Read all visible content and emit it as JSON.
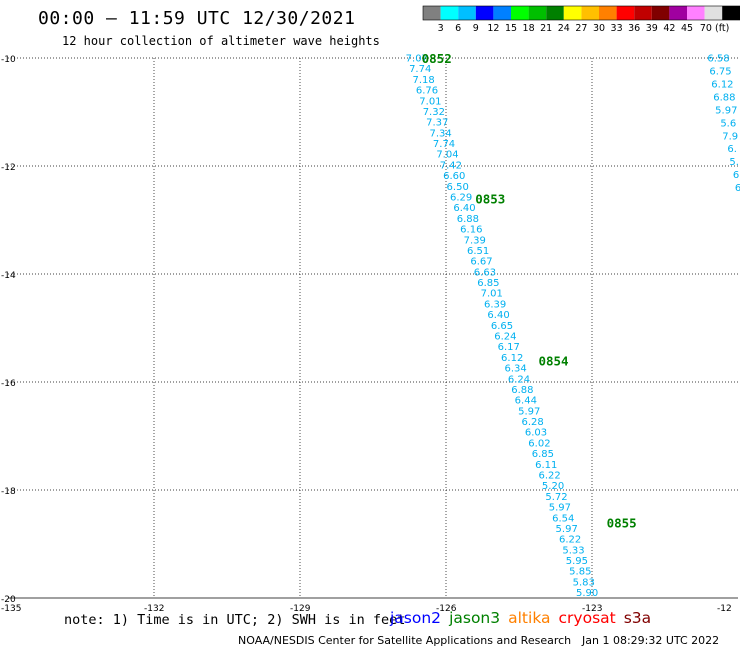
{
  "title": "00:00 – 11:59 UTC 12/30/2021",
  "subtitle": "12 hour collection of altimeter wave heights",
  "colorbar": {
    "colors": [
      "#808080",
      "#00ffff",
      "#00bfff",
      "#0000ff",
      "#0080ff",
      "#00ff00",
      "#00bf00",
      "#008000",
      "#ffff00",
      "#ffc000",
      "#ff8000",
      "#ff0000",
      "#c00000",
      "#800000",
      "#a000a0",
      "#ff80ff",
      "#e0e0e0",
      "#000000"
    ],
    "labels": [
      "3",
      "6",
      "9",
      "12",
      "15",
      "18",
      "21",
      "24",
      "27",
      "30",
      "33",
      "36",
      "39",
      "42",
      "45",
      "70 (ft)"
    ]
  },
  "axes": {
    "lat_labels": [
      "-10",
      "-12",
      "-14",
      "-16",
      "-18",
      "-20"
    ],
    "lon_labels": [
      "-135",
      "-132",
      "-129",
      "-126",
      "-123",
      "-12"
    ]
  },
  "tracks": [
    {
      "color": "#00b0f0",
      "start": [
        -126.6,
        -10.0
      ],
      "end": [
        -123.1,
        -19.9
      ],
      "values": [
        "7.07",
        "7.74",
        "7.18",
        "6.76",
        "7.01",
        "7.32",
        "7.37",
        "7.34",
        "7.74",
        "7.04",
        "7.42",
        "6.60",
        "6.50",
        "6.29",
        "6.40",
        "6.88",
        "6.16",
        "7.39",
        "6.51",
        "6.67",
        "6.63",
        "6.85",
        "7.01",
        "6.39",
        "6.40",
        "6.65",
        "6.24",
        "6.17",
        "6.12",
        "6.34",
        "6.24",
        "6.88",
        "6.44",
        "5.97",
        "6.28",
        "6.03",
        "6.02",
        "6.85",
        "6.11",
        "6.22",
        "5.20",
        "5.72",
        "5.97",
        "6.54",
        "5.97",
        "6.22",
        "5.33",
        "5.95",
        "5.85",
        "5.83",
        "5.90"
      ],
      "times": [
        {
          "label": "0852",
          "lon": -126.5,
          "lat": -10.0
        },
        {
          "label": "0853",
          "lon": -125.4,
          "lat": -12.6
        },
        {
          "label": "0854",
          "lon": -124.1,
          "lat": -15.6
        },
        {
          "label": "0855",
          "lon": -122.7,
          "lat": -18.6
        }
      ]
    },
    {
      "color": "#00b0f0",
      "start": [
        -120.4,
        -10.0
      ],
      "end": [
        -120.0,
        -12.4
      ],
      "values": [
        "6.58",
        "6.75",
        "6.12",
        "6.88",
        "5.97",
        "5.6",
        "7.9",
        "6.",
        "5.",
        "6",
        "6"
      ],
      "times": []
    }
  ],
  "footer": {
    "note": "note:  1) Time is in UTC; 2) SWH is in feet",
    "satellites": [
      {
        "name": "jason2",
        "color": "#0000ff"
      },
      {
        "name": "jason3",
        "color": "#008000"
      },
      {
        "name": "altika",
        "color": "#ff8000"
      },
      {
        "name": "cryosat",
        "color": "#ff0000"
      },
      {
        "name": "s3a",
        "color": "#800000"
      }
    ],
    "credit": "NOAA/NESDIS Center for Satellite Applications and Research",
    "timestamp": "Jan  1 08:29:32 UTC 2022"
  }
}
